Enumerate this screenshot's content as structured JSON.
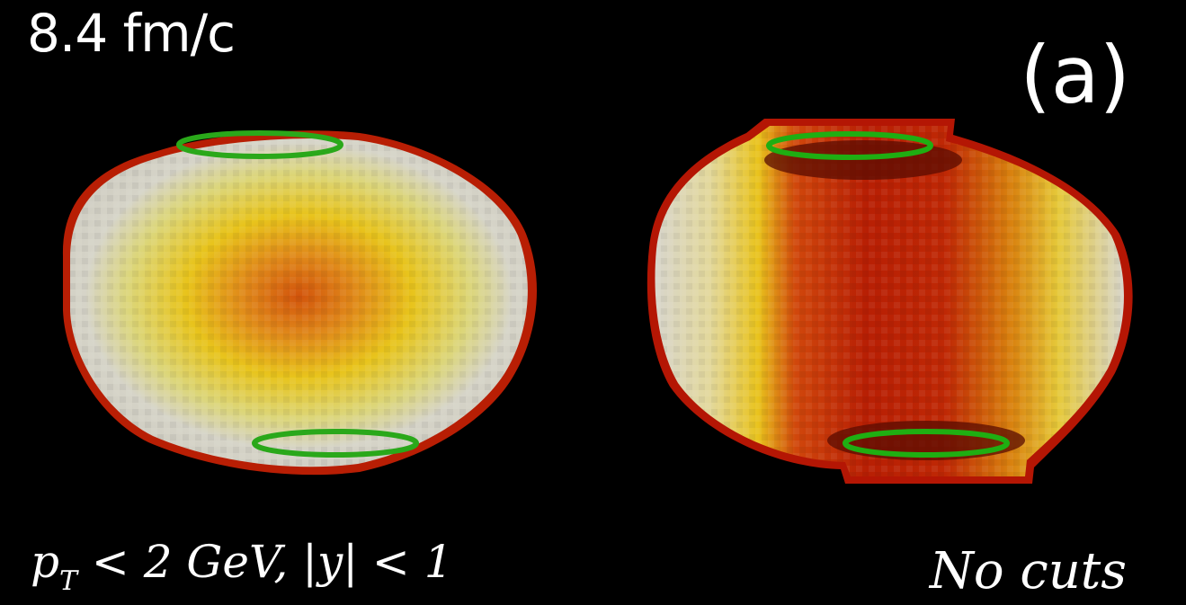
{
  "figure": {
    "time_label": "8.4 fm/c",
    "panel_label": "(a)",
    "left_panel": {
      "caption_p": "p",
      "caption_sub": "T",
      "caption_rest": " < 2 GeV, |y| < 1"
    },
    "right_panel": {
      "caption": "No cuts"
    },
    "colors": {
      "background": "#000000",
      "text": "#ffffff",
      "ellipse_stroke": "#2aa81a",
      "low": "#d8d6cc",
      "mid": "#e9cf1a",
      "high": "#c82a06"
    }
  }
}
